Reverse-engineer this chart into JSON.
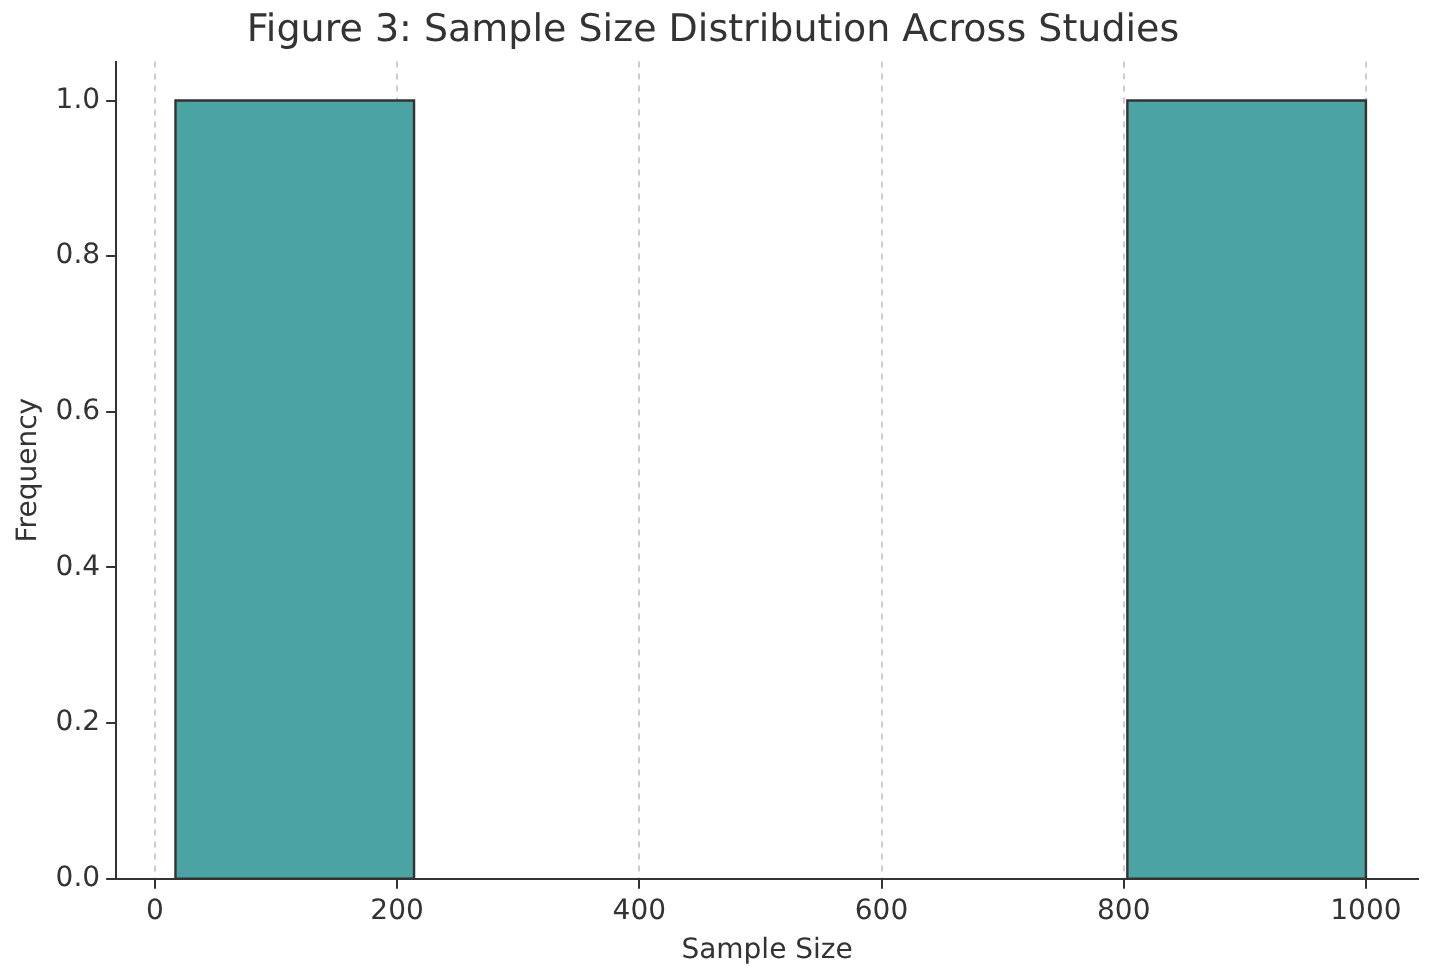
{
  "chart_data": {
    "type": "histogram",
    "title": "Figure 3: Sample Size Distribution Across Studies",
    "xlabel": "Sample Size",
    "ylabel": "Frequency",
    "bins": [
      17,
      214,
      803,
      1000
    ],
    "values": [
      1,
      0,
      1
    ],
    "color": "#4ba3a3",
    "xlim": [
      -32,
      1043
    ],
    "xticks": [
      0,
      200,
      400,
      600,
      800,
      1000
    ],
    "ylim": [
      0,
      1.05
    ],
    "yticks": [
      {
        "value": 0,
        "label": "0.0"
      },
      {
        "value": 0.2,
        "label": "0.2"
      },
      {
        "value": 0.4,
        "label": "0.4"
      },
      {
        "value": 0.6,
        "label": "0.6"
      },
      {
        "value": 0.8,
        "label": "0.8"
      },
      {
        "value": 1,
        "label": "1.0"
      }
    ],
    "grid": "x"
  }
}
